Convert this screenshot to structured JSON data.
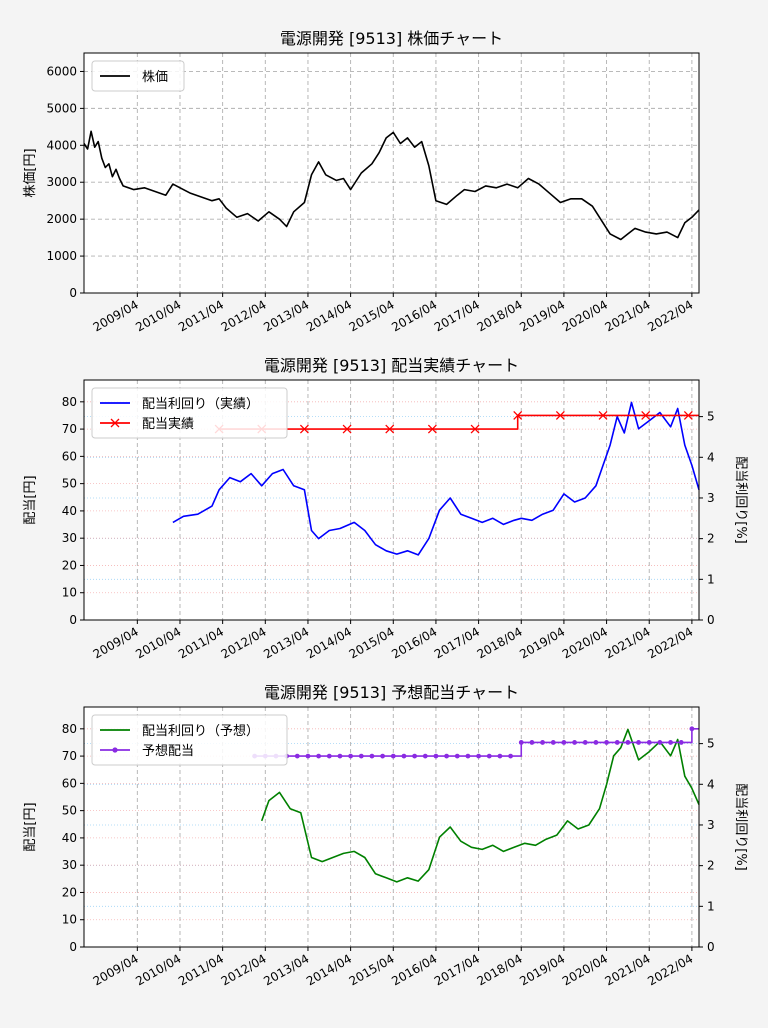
{
  "chart_data": [
    {
      "type": "line",
      "title": "電源開発 [9513] 株価チャート",
      "ylabel": "株価[円]",
      "ylim": [
        0,
        6500
      ],
      "yticks": [
        0,
        1000,
        2000,
        3000,
        4000,
        5000,
        6000
      ],
      "x_range": [
        "2008-01",
        "2022-06"
      ],
      "xticks": [
        "2009/04",
        "2010/04",
        "2011/04",
        "2012/04",
        "2013/04",
        "2014/04",
        "2015/04",
        "2016/04",
        "2017/04",
        "2018/04",
        "2019/04",
        "2020/04",
        "2021/04",
        "2022/04"
      ],
      "grid": true,
      "legend": "upper-left",
      "series": [
        {
          "name": "株価",
          "color": "#000000",
          "points": [
            [
              "2008-01",
              4050
            ],
            [
              "2008-02",
              3900
            ],
            [
              "2008-03",
              4380
            ],
            [
              "2008-04",
              3950
            ],
            [
              "2008-05",
              4100
            ],
            [
              "2008-06",
              3650
            ],
            [
              "2008-07",
              3400
            ],
            [
              "2008-08",
              3500
            ],
            [
              "2008-09",
              3150
            ],
            [
              "2008-10",
              3350
            ],
            [
              "2008-11",
              3100
            ],
            [
              "2008-12",
              2900
            ],
            [
              "2009-03",
              2800
            ],
            [
              "2009-06",
              2850
            ],
            [
              "2009-09",
              2750
            ],
            [
              "2009-12",
              2650
            ],
            [
              "2010-02",
              2950
            ],
            [
              "2010-04",
              2850
            ],
            [
              "2010-07",
              2700
            ],
            [
              "2010-10",
              2600
            ],
            [
              "2011-01",
              2500
            ],
            [
              "2011-03",
              2550
            ],
            [
              "2011-05",
              2300
            ],
            [
              "2011-08",
              2050
            ],
            [
              "2011-11",
              2150
            ],
            [
              "2012-02",
              1950
            ],
            [
              "2012-05",
              2200
            ],
            [
              "2012-08",
              2000
            ],
            [
              "2012-10",
              1800
            ],
            [
              "2012-12",
              2200
            ],
            [
              "2013-03",
              2450
            ],
            [
              "2013-05",
              3200
            ],
            [
              "2013-07",
              3550
            ],
            [
              "2013-09",
              3200
            ],
            [
              "2013-12",
              3050
            ],
            [
              "2014-02",
              3100
            ],
            [
              "2014-04",
              2800
            ],
            [
              "2014-07",
              3250
            ],
            [
              "2014-10",
              3500
            ],
            [
              "2014-12",
              3800
            ],
            [
              "2015-02",
              4200
            ],
            [
              "2015-04",
              4350
            ],
            [
              "2015-06",
              4050
            ],
            [
              "2015-08",
              4200
            ],
            [
              "2015-10",
              3950
            ],
            [
              "2015-12",
              4100
            ],
            [
              "2016-02",
              3450
            ],
            [
              "2016-04",
              2500
            ],
            [
              "2016-07",
              2400
            ],
            [
              "2016-10",
              2650
            ],
            [
              "2016-12",
              2800
            ],
            [
              "2017-03",
              2750
            ],
            [
              "2017-06",
              2900
            ],
            [
              "2017-09",
              2850
            ],
            [
              "2017-12",
              2950
            ],
            [
              "2018-03",
              2850
            ],
            [
              "2018-06",
              3100
            ],
            [
              "2018-09",
              2950
            ],
            [
              "2018-12",
              2700
            ],
            [
              "2019-03",
              2450
            ],
            [
              "2019-06",
              2550
            ],
            [
              "2019-09",
              2550
            ],
            [
              "2019-12",
              2350
            ],
            [
              "2020-03",
              1900
            ],
            [
              "2020-05",
              1600
            ],
            [
              "2020-08",
              1450
            ],
            [
              "2020-10",
              1600
            ],
            [
              "2020-12",
              1750
            ],
            [
              "2021-03",
              1650
            ],
            [
              "2021-06",
              1600
            ],
            [
              "2021-09",
              1650
            ],
            [
              "2021-12",
              1500
            ],
            [
              "2022-02",
              1900
            ],
            [
              "2022-04",
              2050
            ],
            [
              "2022-06",
              2250
            ]
          ]
        }
      ]
    },
    {
      "type": "line",
      "title": "電源開発 [9513] 配当実績チャート",
      "ylabel": "配当[円]",
      "y2label": "配当利回り[%]",
      "ylim": [
        0,
        88
      ],
      "y2lim": [
        0,
        5.9
      ],
      "yticks": [
        0,
        10,
        20,
        30,
        40,
        50,
        60,
        70,
        80
      ],
      "y2ticks": [
        0,
        1,
        2,
        3,
        4,
        5
      ],
      "x_range": [
        "2008-01",
        "2022-06"
      ],
      "xticks": [
        "2009/04",
        "2010/04",
        "2011/04",
        "2012/04",
        "2013/04",
        "2014/04",
        "2015/04",
        "2016/04",
        "2017/04",
        "2018/04",
        "2019/04",
        "2020/04",
        "2021/04",
        "2022/04"
      ],
      "grid": true,
      "legend": "upper-left",
      "series": [
        {
          "name": "配当利回り（実績）",
          "color": "#0000ff",
          "axis": "y2",
          "points": [
            [
              "2010-02",
              2.4
            ],
            [
              "2010-05",
              2.55
            ],
            [
              "2010-09",
              2.6
            ],
            [
              "2011-01",
              2.8
            ],
            [
              "2011-03",
              3.2
            ],
            [
              "2011-06",
              3.5
            ],
            [
              "2011-09",
              3.4
            ],
            [
              "2011-12",
              3.6
            ],
            [
              "2012-03",
              3.3
            ],
            [
              "2012-06",
              3.6
            ],
            [
              "2012-09",
              3.7
            ],
            [
              "2012-12",
              3.3
            ],
            [
              "2013-03",
              3.2
            ],
            [
              "2013-05",
              2.2
            ],
            [
              "2013-07",
              2.0
            ],
            [
              "2013-10",
              2.2
            ],
            [
              "2014-01",
              2.25
            ],
            [
              "2014-05",
              2.4
            ],
            [
              "2014-08",
              2.2
            ],
            [
              "2014-11",
              1.85
            ],
            [
              "2015-02",
              1.7
            ],
            [
              "2015-05",
              1.62
            ],
            [
              "2015-08",
              1.7
            ],
            [
              "2015-11",
              1.6
            ],
            [
              "2016-02",
              2.0
            ],
            [
              "2016-05",
              2.7
            ],
            [
              "2016-08",
              3.0
            ],
            [
              "2016-11",
              2.6
            ],
            [
              "2017-02",
              2.5
            ],
            [
              "2017-05",
              2.4
            ],
            [
              "2017-08",
              2.5
            ],
            [
              "2017-11",
              2.35
            ],
            [
              "2018-02",
              2.45
            ],
            [
              "2018-04",
              2.5
            ],
            [
              "2018-07",
              2.45
            ],
            [
              "2018-10",
              2.6
            ],
            [
              "2019-01",
              2.7
            ],
            [
              "2019-04",
              3.1
            ],
            [
              "2019-07",
              2.9
            ],
            [
              "2019-10",
              3.0
            ],
            [
              "2020-01",
              3.3
            ],
            [
              "2020-03",
              3.8
            ],
            [
              "2020-05",
              4.3
            ],
            [
              "2020-07",
              5.0
            ],
            [
              "2020-09",
              4.6
            ],
            [
              "2020-11",
              5.35
            ],
            [
              "2021-01",
              4.7
            ],
            [
              "2021-04",
              4.9
            ],
            [
              "2021-07",
              5.1
            ],
            [
              "2021-10",
              4.75
            ],
            [
              "2021-12",
              5.2
            ],
            [
              "2022-02",
              4.3
            ],
            [
              "2022-04",
              3.8
            ],
            [
              "2022-06",
              3.2
            ]
          ]
        },
        {
          "name": "配当実績",
          "color": "#ff0000",
          "axis": "y",
          "points": [
            [
              "2011-03",
              70
            ],
            [
              "2012-03",
              70
            ],
            [
              "2013-03",
              70
            ],
            [
              "2014-03",
              70
            ],
            [
              "2015-03",
              70
            ],
            [
              "2016-03",
              70
            ],
            [
              "2017-03",
              70
            ],
            [
              "2018-03",
              75
            ],
            [
              "2019-03",
              75
            ],
            [
              "2020-03",
              75
            ],
            [
              "2021-03",
              75
            ],
            [
              "2022-03",
              75
            ],
            [
              "2022-06",
              75
            ]
          ]
        }
      ]
    },
    {
      "type": "line",
      "title": "電源開発 [9513] 予想配当チャート",
      "ylabel": "配当[円]",
      "y2label": "配当利回り[%]",
      "ylim": [
        0,
        88
      ],
      "y2lim": [
        0,
        5.9
      ],
      "yticks": [
        0,
        10,
        20,
        30,
        40,
        50,
        60,
        70,
        80
      ],
      "y2ticks": [
        0,
        1,
        2,
        3,
        4,
        5
      ],
      "x_range": [
        "2008-01",
        "2022-06"
      ],
      "xticks": [
        "2009/04",
        "2010/04",
        "2011/04",
        "2012/04",
        "2013/04",
        "2014/04",
        "2015/04",
        "2016/04",
        "2017/04",
        "2018/04",
        "2019/04",
        "2020/04",
        "2021/04",
        "2022/04"
      ],
      "grid": true,
      "legend": "upper-left",
      "series": [
        {
          "name": "配当利回り（予想）",
          "color": "#008000",
          "axis": "y2",
          "points": [
            [
              "2012-03",
              3.1
            ],
            [
              "2012-05",
              3.6
            ],
            [
              "2012-08",
              3.8
            ],
            [
              "2012-11",
              3.4
            ],
            [
              "2013-02",
              3.3
            ],
            [
              "2013-05",
              2.2
            ],
            [
              "2013-08",
              2.1
            ],
            [
              "2013-11",
              2.2
            ],
            [
              "2014-02",
              2.3
            ],
            [
              "2014-05",
              2.35
            ],
            [
              "2014-08",
              2.2
            ],
            [
              "2014-11",
              1.8
            ],
            [
              "2015-02",
              1.7
            ],
            [
              "2015-05",
              1.6
            ],
            [
              "2015-08",
              1.7
            ],
            [
              "2015-11",
              1.62
            ],
            [
              "2016-02",
              1.9
            ],
            [
              "2016-05",
              2.7
            ],
            [
              "2016-08",
              2.95
            ],
            [
              "2016-11",
              2.6
            ],
            [
              "2017-02",
              2.45
            ],
            [
              "2017-05",
              2.4
            ],
            [
              "2017-08",
              2.5
            ],
            [
              "2017-11",
              2.35
            ],
            [
              "2018-02",
              2.45
            ],
            [
              "2018-05",
              2.55
            ],
            [
              "2018-08",
              2.5
            ],
            [
              "2018-11",
              2.65
            ],
            [
              "2019-02",
              2.75
            ],
            [
              "2019-05",
              3.1
            ],
            [
              "2019-08",
              2.9
            ],
            [
              "2019-11",
              3.0
            ],
            [
              "2020-02",
              3.4
            ],
            [
              "2020-04",
              4.0
            ],
            [
              "2020-06",
              4.7
            ],
            [
              "2020-08",
              4.9
            ],
            [
              "2020-10",
              5.35
            ],
            [
              "2021-01",
              4.6
            ],
            [
              "2021-04",
              4.8
            ],
            [
              "2021-07",
              5.05
            ],
            [
              "2021-10",
              4.7
            ],
            [
              "2021-12",
              5.1
            ],
            [
              "2022-02",
              4.2
            ],
            [
              "2022-04",
              3.9
            ],
            [
              "2022-06",
              3.5
            ]
          ]
        },
        {
          "name": "予想配当",
          "color": "#8a2be2",
          "axis": "y",
          "points": [
            [
              "2012-01",
              70
            ],
            [
              "2012-04",
              70
            ],
            [
              "2012-07",
              70
            ],
            [
              "2012-10",
              70
            ],
            [
              "2013-01",
              70
            ],
            [
              "2013-04",
              70
            ],
            [
              "2013-07",
              70
            ],
            [
              "2013-10",
              70
            ],
            [
              "2014-01",
              70
            ],
            [
              "2014-04",
              70
            ],
            [
              "2014-07",
              70
            ],
            [
              "2014-10",
              70
            ],
            [
              "2015-01",
              70
            ],
            [
              "2015-04",
              70
            ],
            [
              "2015-07",
              70
            ],
            [
              "2015-10",
              70
            ],
            [
              "2016-01",
              70
            ],
            [
              "2016-04",
              70
            ],
            [
              "2016-07",
              70
            ],
            [
              "2016-10",
              70
            ],
            [
              "2017-01",
              70
            ],
            [
              "2017-04",
              70
            ],
            [
              "2017-07",
              70
            ],
            [
              "2017-10",
              70
            ],
            [
              "2018-01",
              70
            ],
            [
              "2018-04",
              75
            ],
            [
              "2018-07",
              75
            ],
            [
              "2018-10",
              75
            ],
            [
              "2019-01",
              75
            ],
            [
              "2019-04",
              75
            ],
            [
              "2019-07",
              75
            ],
            [
              "2019-10",
              75
            ],
            [
              "2020-01",
              75
            ],
            [
              "2020-04",
              75
            ],
            [
              "2020-07",
              75
            ],
            [
              "2020-10",
              75
            ],
            [
              "2021-01",
              75
            ],
            [
              "2021-04",
              75
            ],
            [
              "2021-07",
              75
            ],
            [
              "2021-10",
              75
            ],
            [
              "2022-01",
              75
            ],
            [
              "2022-04",
              80
            ],
            [
              "2022-06",
              80
            ]
          ]
        }
      ]
    }
  ]
}
